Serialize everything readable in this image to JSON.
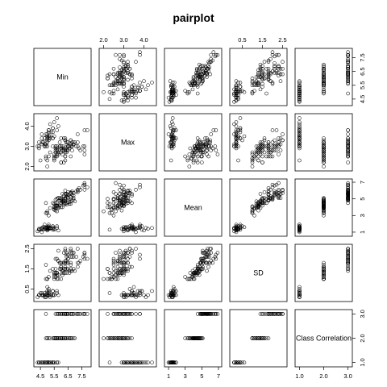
{
  "chart_data": {
    "type": "scatter",
    "title": "pairplot",
    "variables": [
      {
        "name": "Min",
        "lim": [
          4.2,
          8.0
        ],
        "ticks": [
          4.5,
          5.5,
          6.5,
          7.5
        ],
        "tick_labels": [
          "4.5",
          "5.5",
          "6.5",
          "7.5"
        ]
      },
      {
        "name": "Max",
        "lim": [
          1.9,
          4.5
        ],
        "ticks": [
          2.0,
          3.0,
          4.0
        ],
        "tick_labels": [
          "2.0",
          "3.0",
          "4.0"
        ]
      },
      {
        "name": "Mean",
        "lim": [
          0.8,
          7.1
        ],
        "ticks": [
          1,
          3,
          5,
          7
        ],
        "tick_labels": [
          "1",
          "3",
          "5",
          "7"
        ]
      },
      {
        "name": "SD",
        "lim": [
          0.0,
          2.6
        ],
        "ticks": [
          0.5,
          1.5,
          2.5
        ],
        "tick_labels": [
          "0.5",
          "1.5",
          "2.5"
        ]
      },
      {
        "name": "Class Correlation",
        "lim": [
          0.92,
          3.08
        ],
        "ticks": [
          1.0,
          2.0,
          3.0
        ],
        "tick_labels": [
          "1.0",
          "2.0",
          "3.0"
        ]
      }
    ],
    "points": [
      [
        5.1,
        3.5,
        1.4,
        0.2,
        1
      ],
      [
        4.9,
        3.0,
        1.4,
        0.2,
        1
      ],
      [
        4.7,
        3.2,
        1.3,
        0.2,
        1
      ],
      [
        4.6,
        3.1,
        1.5,
        0.2,
        1
      ],
      [
        5.0,
        3.6,
        1.4,
        0.2,
        1
      ],
      [
        5.4,
        3.9,
        1.7,
        0.4,
        1
      ],
      [
        4.6,
        3.4,
        1.4,
        0.3,
        1
      ],
      [
        5.0,
        3.4,
        1.5,
        0.2,
        1
      ],
      [
        4.4,
        2.9,
        1.4,
        0.2,
        1
      ],
      [
        4.9,
        3.1,
        1.5,
        0.1,
        1
      ],
      [
        5.4,
        3.7,
        1.5,
        0.2,
        1
      ],
      [
        4.8,
        3.4,
        1.6,
        0.2,
        1
      ],
      [
        4.8,
        3.0,
        1.4,
        0.1,
        1
      ],
      [
        4.3,
        3.0,
        1.1,
        0.1,
        1
      ],
      [
        5.8,
        4.0,
        1.2,
        0.2,
        1
      ],
      [
        5.7,
        4.4,
        1.5,
        0.4,
        1
      ],
      [
        5.4,
        3.9,
        1.3,
        0.4,
        1
      ],
      [
        5.1,
        3.5,
        1.4,
        0.3,
        1
      ],
      [
        5.7,
        3.8,
        1.7,
        0.3,
        1
      ],
      [
        5.1,
        3.8,
        1.5,
        0.3,
        1
      ],
      [
        5.4,
        3.4,
        1.7,
        0.2,
        1
      ],
      [
        5.1,
        3.7,
        1.5,
        0.4,
        1
      ],
      [
        4.6,
        3.6,
        1.0,
        0.2,
        1
      ],
      [
        5.1,
        3.3,
        1.7,
        0.5,
        1
      ],
      [
        4.8,
        3.4,
        1.9,
        0.2,
        1
      ],
      [
        5.0,
        3.0,
        1.6,
        0.2,
        1
      ],
      [
        5.0,
        3.4,
        1.6,
        0.4,
        1
      ],
      [
        5.2,
        3.5,
        1.5,
        0.2,
        1
      ],
      [
        5.2,
        3.4,
        1.4,
        0.2,
        1
      ],
      [
        4.7,
        3.2,
        1.6,
        0.2,
        1
      ],
      [
        4.8,
        3.1,
        1.6,
        0.2,
        1
      ],
      [
        5.4,
        3.4,
        1.5,
        0.4,
        1
      ],
      [
        5.2,
        4.1,
        1.5,
        0.1,
        1
      ],
      [
        5.5,
        4.2,
        1.4,
        0.2,
        1
      ],
      [
        4.9,
        3.1,
        1.5,
        0.2,
        1
      ],
      [
        5.0,
        3.2,
        1.2,
        0.2,
        1
      ],
      [
        5.5,
        3.5,
        1.3,
        0.2,
        1
      ],
      [
        4.9,
        3.6,
        1.4,
        0.1,
        1
      ],
      [
        4.4,
        3.0,
        1.3,
        0.2,
        1
      ],
      [
        5.1,
        3.4,
        1.5,
        0.2,
        1
      ],
      [
        5.0,
        3.5,
        1.3,
        0.3,
        1
      ],
      [
        4.5,
        2.3,
        1.3,
        0.3,
        1
      ],
      [
        4.4,
        3.2,
        1.3,
        0.2,
        1
      ],
      [
        5.0,
        3.5,
        1.6,
        0.6,
        1
      ],
      [
        5.1,
        3.8,
        1.9,
        0.4,
        1
      ],
      [
        4.8,
        3.0,
        1.4,
        0.3,
        1
      ],
      [
        5.1,
        3.8,
        1.6,
        0.2,
        1
      ],
      [
        4.6,
        3.2,
        1.4,
        0.2,
        1
      ],
      [
        5.3,
        3.7,
        1.5,
        0.2,
        1
      ],
      [
        5.0,
        3.3,
        1.4,
        0.2,
        1
      ],
      [
        7.0,
        3.2,
        4.7,
        1.4,
        2
      ],
      [
        6.4,
        3.2,
        4.5,
        1.5,
        2
      ],
      [
        6.9,
        3.1,
        4.9,
        1.5,
        2
      ],
      [
        5.5,
        2.3,
        4.0,
        1.3,
        2
      ],
      [
        6.5,
        2.8,
        4.6,
        1.5,
        2
      ],
      [
        5.7,
        2.8,
        4.5,
        1.3,
        2
      ],
      [
        6.3,
        3.3,
        4.7,
        1.6,
        2
      ],
      [
        4.9,
        2.4,
        3.3,
        1.0,
        2
      ],
      [
        6.6,
        2.9,
        4.6,
        1.3,
        2
      ],
      [
        5.2,
        2.7,
        3.9,
        1.4,
        2
      ],
      [
        5.0,
        2.0,
        3.5,
        1.0,
        2
      ],
      [
        5.9,
        3.0,
        4.2,
        1.5,
        2
      ],
      [
        6.0,
        2.2,
        4.0,
        1.0,
        2
      ],
      [
        6.1,
        2.9,
        4.7,
        1.4,
        2
      ],
      [
        5.6,
        2.9,
        3.6,
        1.3,
        2
      ],
      [
        6.7,
        3.1,
        4.4,
        1.4,
        2
      ],
      [
        5.6,
        3.0,
        4.5,
        1.5,
        2
      ],
      [
        5.8,
        2.7,
        4.1,
        1.0,
        2
      ],
      [
        6.2,
        2.2,
        4.5,
        1.5,
        2
      ],
      [
        5.6,
        2.5,
        3.9,
        1.1,
        2
      ],
      [
        5.9,
        3.2,
        4.8,
        1.8,
        2
      ],
      [
        6.1,
        2.8,
        4.0,
        1.3,
        2
      ],
      [
        6.3,
        2.5,
        4.9,
        1.5,
        2
      ],
      [
        6.1,
        2.8,
        4.7,
        1.2,
        2
      ],
      [
        6.4,
        2.9,
        4.3,
        1.3,
        2
      ],
      [
        6.6,
        3.0,
        4.4,
        1.4,
        2
      ],
      [
        6.8,
        2.8,
        4.8,
        1.4,
        2
      ],
      [
        6.7,
        3.0,
        5.0,
        1.7,
        2
      ],
      [
        6.0,
        2.9,
        4.5,
        1.5,
        2
      ],
      [
        5.7,
        2.6,
        3.5,
        1.0,
        2
      ],
      [
        5.5,
        2.4,
        3.8,
        1.1,
        2
      ],
      [
        5.5,
        2.4,
        3.7,
        1.0,
        2
      ],
      [
        5.8,
        2.7,
        3.9,
        1.2,
        2
      ],
      [
        6.0,
        2.7,
        5.1,
        1.6,
        2
      ],
      [
        5.4,
        3.0,
        4.5,
        1.5,
        2
      ],
      [
        6.0,
        3.4,
        4.5,
        1.6,
        2
      ],
      [
        6.7,
        3.1,
        4.7,
        1.5,
        2
      ],
      [
        6.3,
        2.3,
        4.4,
        1.3,
        2
      ],
      [
        5.6,
        3.0,
        4.1,
        1.3,
        2
      ],
      [
        5.5,
        2.5,
        4.0,
        1.3,
        2
      ],
      [
        5.5,
        2.6,
        4.4,
        1.2,
        2
      ],
      [
        6.1,
        3.0,
        4.6,
        1.4,
        2
      ],
      [
        5.8,
        2.6,
        4.0,
        1.2,
        2
      ],
      [
        5.0,
        2.3,
        3.3,
        1.0,
        2
      ],
      [
        5.6,
        2.7,
        4.2,
        1.3,
        2
      ],
      [
        5.7,
        3.0,
        4.2,
        1.2,
        2
      ],
      [
        5.7,
        2.9,
        4.2,
        1.3,
        2
      ],
      [
        6.2,
        2.9,
        4.3,
        1.3,
        2
      ],
      [
        5.1,
        2.5,
        3.0,
        1.1,
        2
      ],
      [
        5.7,
        2.8,
        4.1,
        1.3,
        2
      ],
      [
        6.3,
        3.3,
        6.0,
        2.5,
        3
      ],
      [
        5.8,
        2.7,
        5.1,
        1.9,
        3
      ],
      [
        7.1,
        3.0,
        5.9,
        2.1,
        3
      ],
      [
        6.3,
        2.9,
        5.6,
        1.8,
        3
      ],
      [
        6.5,
        3.0,
        5.8,
        2.2,
        3
      ],
      [
        7.6,
        3.0,
        6.6,
        2.1,
        3
      ],
      [
        4.9,
        2.5,
        4.5,
        1.7,
        3
      ],
      [
        7.3,
        2.9,
        6.3,
        1.8,
        3
      ],
      [
        6.7,
        2.5,
        5.8,
        1.8,
        3
      ],
      [
        7.2,
        3.6,
        6.1,
        2.5,
        3
      ],
      [
        6.5,
        3.2,
        5.1,
        2.0,
        3
      ],
      [
        6.4,
        2.7,
        5.3,
        1.9,
        3
      ],
      [
        6.8,
        3.0,
        5.5,
        2.1,
        3
      ],
      [
        5.7,
        2.5,
        5.0,
        2.0,
        3
      ],
      [
        5.8,
        2.8,
        5.1,
        2.4,
        3
      ],
      [
        6.4,
        3.2,
        5.3,
        2.3,
        3
      ],
      [
        6.5,
        3.0,
        5.5,
        1.8,
        3
      ],
      [
        7.7,
        3.8,
        6.7,
        2.2,
        3
      ],
      [
        7.7,
        2.6,
        6.9,
        2.3,
        3
      ],
      [
        6.0,
        2.2,
        5.0,
        1.5,
        3
      ],
      [
        6.9,
        3.2,
        5.7,
        2.3,
        3
      ],
      [
        5.6,
        2.8,
        4.9,
        2.0,
        3
      ],
      [
        7.7,
        2.8,
        6.7,
        2.0,
        3
      ],
      [
        6.3,
        2.7,
        4.9,
        1.8,
        3
      ],
      [
        6.7,
        3.3,
        5.7,
        2.1,
        3
      ],
      [
        7.2,
        3.2,
        6.0,
        1.8,
        3
      ],
      [
        6.2,
        2.8,
        4.8,
        1.8,
        3
      ],
      [
        6.1,
        3.0,
        4.9,
        1.8,
        3
      ],
      [
        6.4,
        2.8,
        5.6,
        2.1,
        3
      ],
      [
        7.2,
        3.0,
        5.8,
        1.6,
        3
      ],
      [
        7.4,
        2.8,
        6.1,
        1.9,
        3
      ],
      [
        7.9,
        3.8,
        6.4,
        2.0,
        3
      ],
      [
        6.4,
        2.8,
        5.6,
        2.2,
        3
      ],
      [
        6.3,
        2.8,
        5.1,
        1.5,
        3
      ],
      [
        6.1,
        2.6,
        5.6,
        1.4,
        3
      ],
      [
        7.7,
        3.0,
        6.1,
        2.3,
        3
      ],
      [
        6.3,
        3.4,
        5.6,
        2.4,
        3
      ],
      [
        6.4,
        3.1,
        5.5,
        1.8,
        3
      ],
      [
        6.0,
        3.0,
        4.8,
        1.8,
        3
      ],
      [
        6.9,
        3.1,
        5.4,
        2.1,
        3
      ],
      [
        6.7,
        3.1,
        5.6,
        2.4,
        3
      ],
      [
        6.9,
        3.1,
        5.1,
        2.3,
        3
      ],
      [
        5.8,
        2.7,
        5.1,
        1.9,
        3
      ],
      [
        6.8,
        3.2,
        5.9,
        2.3,
        3
      ],
      [
        6.7,
        3.3,
        5.7,
        2.5,
        3
      ],
      [
        6.7,
        3.0,
        5.2,
        2.3,
        3
      ],
      [
        6.3,
        2.5,
        5.0,
        1.9,
        3
      ],
      [
        6.5,
        3.0,
        5.2,
        2.0,
        3
      ],
      [
        6.2,
        3.4,
        5.4,
        2.3,
        3
      ],
      [
        5.9,
        3.0,
        5.1,
        1.8,
        3
      ]
    ],
    "grid": false,
    "legend": "none"
  }
}
